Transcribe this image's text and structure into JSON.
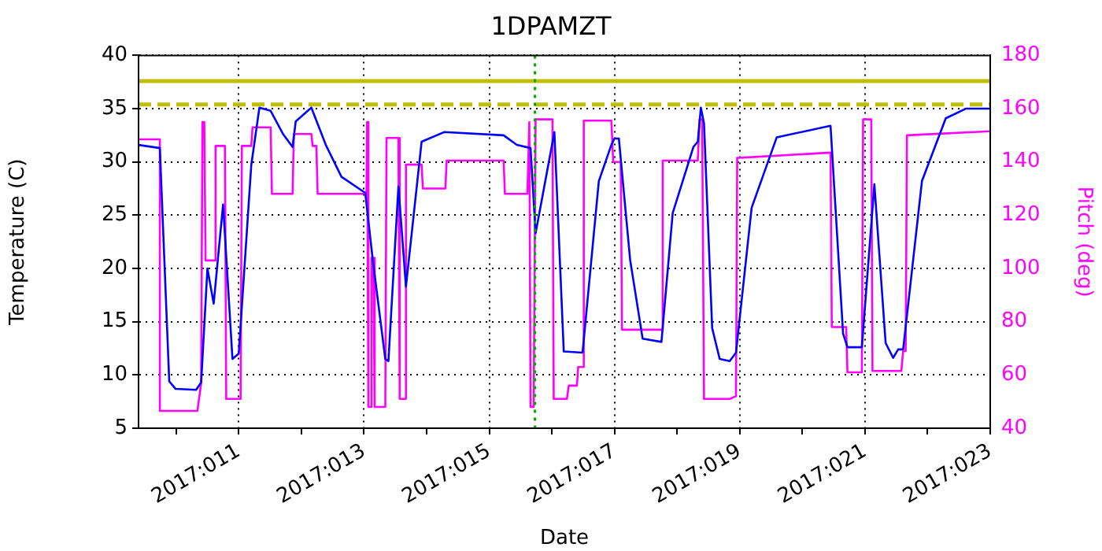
{
  "chart_data": {
    "type": "line",
    "title": "1DPAMZT",
    "xlabel": "Date",
    "ylabel": "Temperature (C)",
    "y2label": "Pitch (deg)",
    "xlim": [
      "2017-01-09T09:36",
      "2017-01-23"
    ],
    "xticks": [
      {
        "value": "2017-01-10",
        "label": null
      },
      {
        "value": "2017-01-11",
        "label": "2017:011"
      },
      {
        "value": "2017-01-12",
        "label": null
      },
      {
        "value": "2017-01-13",
        "label": "2017:013"
      },
      {
        "value": "2017-01-14",
        "label": null
      },
      {
        "value": "2017-01-15",
        "label": "2017:015"
      },
      {
        "value": "2017-01-16",
        "label": null
      },
      {
        "value": "2017-01-17",
        "label": "2017:017"
      },
      {
        "value": "2017-01-18",
        "label": null
      },
      {
        "value": "2017-01-19",
        "label": "2017:019"
      },
      {
        "value": "2017-01-20",
        "label": null
      },
      {
        "value": "2017-01-21",
        "label": "2017:021"
      },
      {
        "value": "2017-01-22",
        "label": null
      },
      {
        "value": "2017-01-23",
        "label": "2017:023"
      }
    ],
    "ylim": [
      5,
      40
    ],
    "yticks": [
      5,
      10,
      15,
      20,
      25,
      30,
      35,
      40
    ],
    "y2lim": [
      40,
      180
    ],
    "y2ticks": [
      40,
      60,
      80,
      100,
      120,
      140,
      160,
      180
    ],
    "grid": true,
    "ref_lines": [
      {
        "axis": "y",
        "value": 37.6,
        "color": "#bfbf00",
        "line_style": "solid"
      },
      {
        "axis": "y",
        "value": 35.4,
        "color": "#bfbf00",
        "line_style": "dashed"
      },
      {
        "axis": "x",
        "value": "2017-01-15T17:31",
        "color": "#00aa00",
        "line_style": "dotted"
      }
    ],
    "series": [
      {
        "color": "#0000ff",
        "x": [
          "2017-01-09T09:36",
          "2017-01-09T17:46",
          "2017-01-09T21:22",
          "2017-01-09T23:46",
          "2017-01-10T07:41",
          "2017-01-10T09:36",
          "2017-01-10T12:00",
          "2017-01-10T14:24",
          "2017-01-10T18:00",
          "2017-01-10T21:36",
          "2017-01-11T00:00",
          "2017-01-11T04:48",
          "2017-01-11T07:55",
          "2017-01-11T12:14",
          "2017-01-11T17:02",
          "2017-01-11T20:38",
          "2017-01-11T21:50",
          "2017-01-12T03:50",
          "2017-01-12T09:22",
          "2017-01-12T15:22",
          "2017-01-13T00:29",
          "2017-01-13T03:22",
          "2017-01-13T08:10",
          "2017-01-13T09:22",
          "2017-01-13T13:12",
          "2017-01-13T16:05",
          "2017-01-13T22:05",
          "2017-01-14T06:43",
          "2017-01-15T05:31",
          "2017-01-15T10:34",
          "2017-01-15T15:50",
          "2017-01-15T17:46",
          "2017-01-16T00:58",
          "2017-01-16T04:34",
          "2017-01-16T11:46",
          "2017-01-16T18:00",
          "2017-01-16T22:48",
          "2017-01-17T00:00",
          "2017-01-17T01:41",
          "2017-01-17T06:00",
          "2017-01-17T10:48",
          "2017-01-17T18:00",
          "2017-01-17T22:19",
          "2017-01-18T06:14",
          "2017-01-18T07:55",
          "2017-01-18T09:07",
          "2017-01-18T10:19",
          "2017-01-18T13:26",
          "2017-01-18T16:19",
          "2017-01-18T20:10",
          "2017-01-18T22:34",
          "2017-01-19T04:34",
          "2017-01-19T14:10",
          "2017-01-20T10:48",
          "2017-01-20T15:36",
          "2017-01-20T17:17",
          "2017-01-20T22:48",
          "2017-01-21T03:36",
          "2017-01-21T07:55",
          "2017-01-21T10:48",
          "2017-01-21T12:43",
          "2017-01-21T14:38",
          "2017-01-21T21:50",
          "2017-01-22T06:58",
          "2017-01-22T14:38",
          "2017-01-23T00:00"
        ],
        "values": [
          31.6,
          31.3,
          9.4,
          8.7,
          8.6,
          9.3,
          20.0,
          16.7,
          26.0,
          11.5,
          12.0,
          29.7,
          35.1,
          34.8,
          32.6,
          31.4,
          33.8,
          35.1,
          31.6,
          28.6,
          27.1,
          20.8,
          11.5,
          11.3,
          27.7,
          18.3,
          31.9,
          32.8,
          32.5,
          31.6,
          31.3,
          23.3,
          32.8,
          12.2,
          12.1,
          28.2,
          31.6,
          32.2,
          32.2,
          20.8,
          13.4,
          13.1,
          25.2,
          31.4,
          31.9,
          35.1,
          33.6,
          14.4,
          11.5,
          11.3,
          12.1,
          25.7,
          32.3,
          33.4,
          13.9,
          12.6,
          12.6,
          27.9,
          13.0,
          11.6,
          12.4,
          12.4,
          28.2,
          34.1,
          35.0,
          35.0
        ]
      },
      {
        "color": "#ff00ff",
        "axis": "y2",
        "x": [
          "2017-01-09T09:36",
          "2017-01-09T17:46",
          "2017-01-09T17:46",
          "2017-01-10T08:10",
          "2017-01-10T09:36",
          "2017-01-10T10:05",
          "2017-01-10T10:48",
          "2017-01-10T11:17",
          "2017-01-10T14:53",
          "2017-01-10T15:07",
          "2017-01-10T18:43",
          "2017-01-10T19:12",
          "2017-01-11T00:43",
          "2017-01-11T01:12",
          "2017-01-11T04:48",
          "2017-01-11T05:17",
          "2017-01-11T12:14",
          "2017-01-11T12:43",
          "2017-01-11T20:38",
          "2017-01-11T21:07",
          "2017-01-12T03:50",
          "2017-01-12T04:19",
          "2017-01-12T05:46",
          "2017-01-12T06:14",
          "2017-01-13T00:58",
          "2017-01-13T01:12",
          "2017-01-13T01:41",
          "2017-01-13T02:38",
          "2017-01-13T02:53",
          "2017-01-13T03:36",
          "2017-01-13T04:05",
          "2017-01-13T08:10",
          "2017-01-13T08:38",
          "2017-01-13T13:12",
          "2017-01-13T13:41",
          "2017-01-13T15:36",
          "2017-01-13T16:05",
          "2017-01-13T22:05",
          "2017-01-13T22:34",
          "2017-01-14T07:12",
          "2017-01-14T07:41",
          "2017-01-15T05:31",
          "2017-01-15T06:00",
          "2017-01-15T14:38",
          "2017-01-15T15:22",
          "2017-01-15T15:50",
          "2017-01-15T17:02",
          "2017-01-15T17:46",
          "2017-01-16T00:14",
          "2017-01-16T00:43",
          "2017-01-16T05:46",
          "2017-01-16T06:29",
          "2017-01-16T09:36",
          "2017-01-16T10:05",
          "2017-01-16T11:46",
          "2017-01-16T12:14",
          "2017-01-16T22:48",
          "2017-01-16T23:31",
          "2017-01-17T02:24",
          "2017-01-17T02:53",
          "2017-01-17T18:00",
          "2017-01-17T18:29",
          "2017-01-18T07:55",
          "2017-01-18T08:38",
          "2017-01-18T09:36",
          "2017-01-18T10:19",
          "2017-01-18T20:10",
          "2017-01-18T22:34",
          "2017-01-18T23:02",
          "2017-01-20T10:48",
          "2017-01-20T11:17",
          "2017-01-20T16:48",
          "2017-01-20T17:17",
          "2017-01-20T22:48",
          "2017-01-20T23:17",
          "2017-01-21T02:24",
          "2017-01-21T02:53",
          "2017-01-21T13:55",
          "2017-01-21T14:38",
          "2017-01-21T15:36",
          "2017-01-21T16:05",
          "2017-01-23T00:00"
        ],
        "values": [
          148.5,
          148.5,
          46.5,
          46.5,
          57,
          155,
          155,
          103,
          103,
          146,
          146,
          51,
          51,
          146,
          146,
          153,
          153,
          128,
          128,
          150.5,
          150.5,
          146,
          146,
          128,
          128,
          155,
          48,
          48,
          104,
          104,
          48,
          48,
          149,
          149,
          51,
          51,
          139,
          139,
          130,
          130,
          140.5,
          140.5,
          128,
          128,
          155,
          48,
          48,
          156,
          156,
          51,
          51,
          56,
          56,
          63,
          63,
          155.5,
          155.5,
          140,
          140,
          77,
          77,
          140.5,
          140.5,
          156,
          156,
          51,
          51,
          52,
          141.5,
          143.5,
          78,
          78,
          61,
          61,
          156,
          156,
          61.5,
          61.5,
          69,
          69,
          150,
          151.5
        ]
      }
    ]
  }
}
